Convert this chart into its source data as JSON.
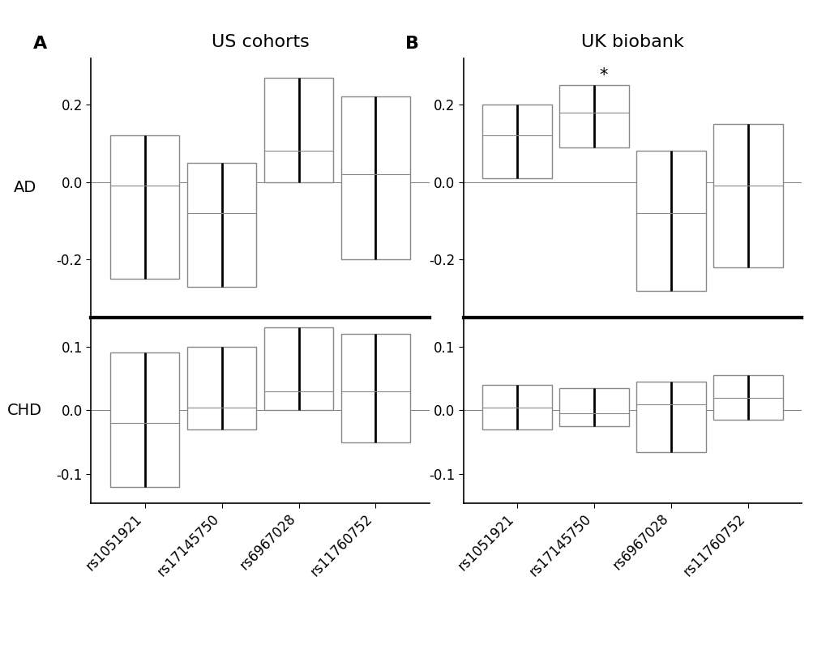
{
  "snps": [
    "rs1051921",
    "rs17145750",
    "rs6967028",
    "rs11760752"
  ],
  "panel_A_title": "US cohorts",
  "panel_B_title": "UK biobank",
  "panel_A_label": "A",
  "panel_B_label": "B",
  "AD_label": "AD",
  "CHD_label": "CHD",
  "US_AD_beta": [
    -0.01,
    -0.08,
    0.08,
    0.02
  ],
  "US_AD_ci_lo": [
    -0.25,
    -0.27,
    0.0,
    -0.2
  ],
  "US_AD_ci_hi": [
    0.12,
    0.05,
    0.27,
    0.22
  ],
  "US_CHD_beta": [
    -0.02,
    0.005,
    0.03,
    0.03
  ],
  "US_CHD_ci_lo": [
    -0.12,
    -0.03,
    0.0,
    -0.05
  ],
  "US_CHD_ci_hi": [
    0.09,
    0.1,
    0.13,
    0.12
  ],
  "UK_AD_beta": [
    0.12,
    0.18,
    -0.08,
    -0.01
  ],
  "UK_AD_ci_lo": [
    0.01,
    0.09,
    -0.28,
    -0.22
  ],
  "UK_AD_ci_hi": [
    0.2,
    0.25,
    0.08,
    0.15
  ],
  "UK_AD_sig": [
    false,
    true,
    false,
    false
  ],
  "UK_CHD_beta": [
    0.005,
    -0.005,
    0.01,
    0.02
  ],
  "UK_CHD_ci_lo": [
    -0.03,
    -0.025,
    -0.065,
    -0.015
  ],
  "UK_CHD_ci_hi": [
    0.04,
    0.035,
    0.045,
    0.055
  ],
  "AD_ylim": [
    -0.35,
    0.32
  ],
  "CHD_ylim": [
    -0.145,
    0.145
  ],
  "AD_yticks": [
    -0.2,
    0.0,
    0.2
  ],
  "CHD_yticks": [
    -0.1,
    0.0,
    0.1
  ],
  "line_color": "#000000",
  "box_edge_color": "#888888",
  "fig_width": 10.2,
  "fig_height": 7.96,
  "dpi": 100
}
